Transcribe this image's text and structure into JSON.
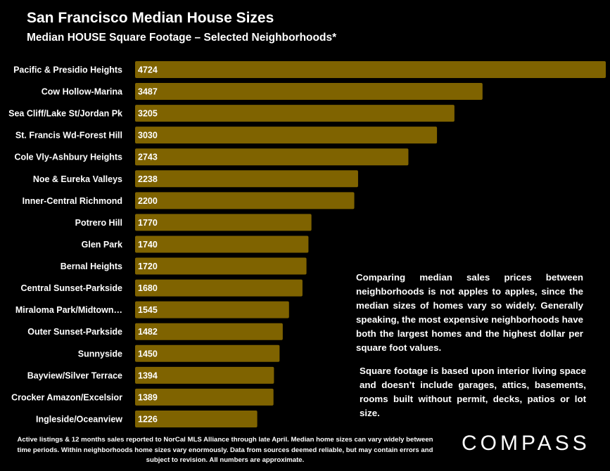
{
  "chart_data": {
    "type": "bar",
    "orientation": "horizontal",
    "title": "San Francisco Median House Sizes",
    "subtitle": "Median HOUSE Square Footage – Selected Neighborhoods*",
    "categories": [
      "Pacific & Presidio Heights",
      "Cow Hollow-Marina",
      "Sea Cliff/Lake St/Jordan Pk",
      "St. Francis Wd-Forest Hill",
      "Cole Vly-Ashbury Heights",
      "Noe & Eureka Valleys",
      "Inner-Central Richmond",
      "Potrero Hill",
      "Glen Park",
      "Bernal Heights",
      "Central Sunset-Parkside",
      "Miraloma Park/Midtown…",
      "Outer Sunset-Parkside",
      "Sunnyside",
      "Bayview/Silver Terrace",
      "Crocker Amazon/Excelsior",
      "Ingleside/Oceanview"
    ],
    "values": [
      4724,
      3487,
      3205,
      3030,
      2743,
      2238,
      2200,
      1770,
      1740,
      1720,
      1680,
      1545,
      1482,
      1450,
      1394,
      1389,
      1226
    ],
    "xlim": [
      0,
      4724
    ],
    "grid": false,
    "colors": {
      "bar": "#7f6300",
      "background": "#000000",
      "text": "#ffffff"
    }
  },
  "notes": {
    "note1": "Comparing median sales prices between neighborhoods is not apples to apples, since the median sizes of homes vary so widely. Generally speaking, the most expensive neighborhoods have both the largest homes and the highest dollar per square foot values.",
    "note2": "Square footage is based upon interior living space and doesn’t include garages, attics, basements, rooms built without permit, decks, patios or lot size."
  },
  "footnote": "Active listings & 12 months sales reported to NorCal MLS Alliance through late April. Median home sizes can vary widely between time periods. Within neighborhoods home sizes vary enormously. Data from sources deemed reliable, but may contain errors and subject to revision. All numbers are approximate.",
  "logo": "COMPASS"
}
